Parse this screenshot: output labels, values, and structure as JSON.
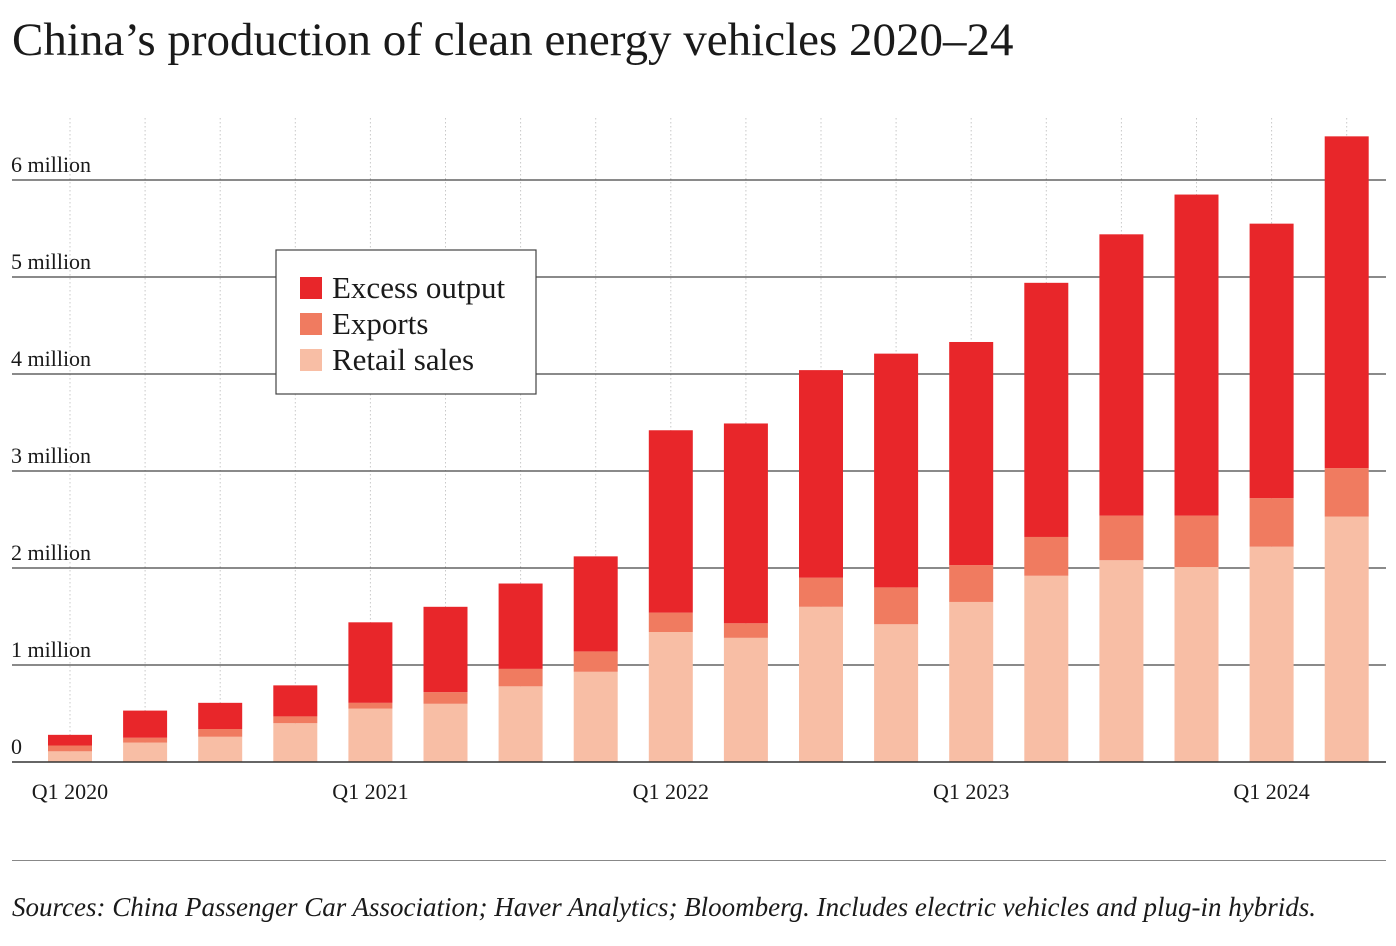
{
  "colors": {
    "excess": "#e8262a",
    "exports": "#f07b60",
    "retail": "#f8bea5",
    "gridline": "#444444",
    "vgrid": "#c8c8c8"
  },
  "chart_data": {
    "type": "bar",
    "stacked": true,
    "title": "China’s production of clean energy vehicles 2020–24",
    "categories": [
      "Q1 2020",
      "Q2 2020",
      "Q3 2020",
      "Q4 2020",
      "Q1 2021",
      "Q2 2021",
      "Q3 2021",
      "Q4 2021",
      "Q1 2022",
      "Q2 2022",
      "Q3 2022",
      "Q4 2022",
      "Q1 2023",
      "Q2 2023",
      "Q3 2023",
      "Q4 2023",
      "Q1 2024",
      "Q2 2024"
    ],
    "x_tick_labels": [
      {
        "index": 0,
        "label": "Q1 2020"
      },
      {
        "index": 4,
        "label": "Q1 2021"
      },
      {
        "index": 8,
        "label": "Q1 2022"
      },
      {
        "index": 12,
        "label": "Q1 2023"
      },
      {
        "index": 16,
        "label": "Q1 2024"
      }
    ],
    "y_ticks": [
      {
        "value": 0,
        "label": "0"
      },
      {
        "value": 1000000,
        "label": "1 million"
      },
      {
        "value": 2000000,
        "label": "2 million"
      },
      {
        "value": 3000000,
        "label": "3 million"
      },
      {
        "value": 4000000,
        "label": "4 million"
      },
      {
        "value": 5000000,
        "label": "5 million"
      },
      {
        "value": 6000000,
        "label": "6 million"
      }
    ],
    "ylim": [
      0,
      6700000
    ],
    "series": [
      {
        "name": "Retail sales",
        "color_key": "retail",
        "values": [
          110000,
          200000,
          260000,
          400000,
          550000,
          600000,
          780000,
          930000,
          1340000,
          1280000,
          1600000,
          1420000,
          1650000,
          1920000,
          2080000,
          2010000,
          2220000,
          2530000
        ]
      },
      {
        "name": "Exports",
        "color_key": "exports",
        "values": [
          60000,
          50000,
          80000,
          70000,
          60000,
          120000,
          180000,
          210000,
          200000,
          150000,
          300000,
          380000,
          380000,
          400000,
          460000,
          530000,
          500000,
          500000
        ]
      },
      {
        "name": "Excess output",
        "color_key": "excess",
        "values": [
          110000,
          280000,
          270000,
          320000,
          830000,
          880000,
          880000,
          980000,
          1880000,
          2060000,
          2140000,
          2410000,
          2300000,
          2620000,
          2900000,
          3310000,
          2830000,
          3420000
        ]
      }
    ],
    "legend": {
      "placement": "top-left",
      "entries": [
        "Excess output",
        "Exports",
        "Retail sales"
      ]
    },
    "grid": {
      "horizontal": true,
      "vertical": true
    }
  },
  "source_note": "Sources: China Passenger Car Association; Haver Analytics; Bloomberg. Includes electric vehicles and plug-in hybrids."
}
